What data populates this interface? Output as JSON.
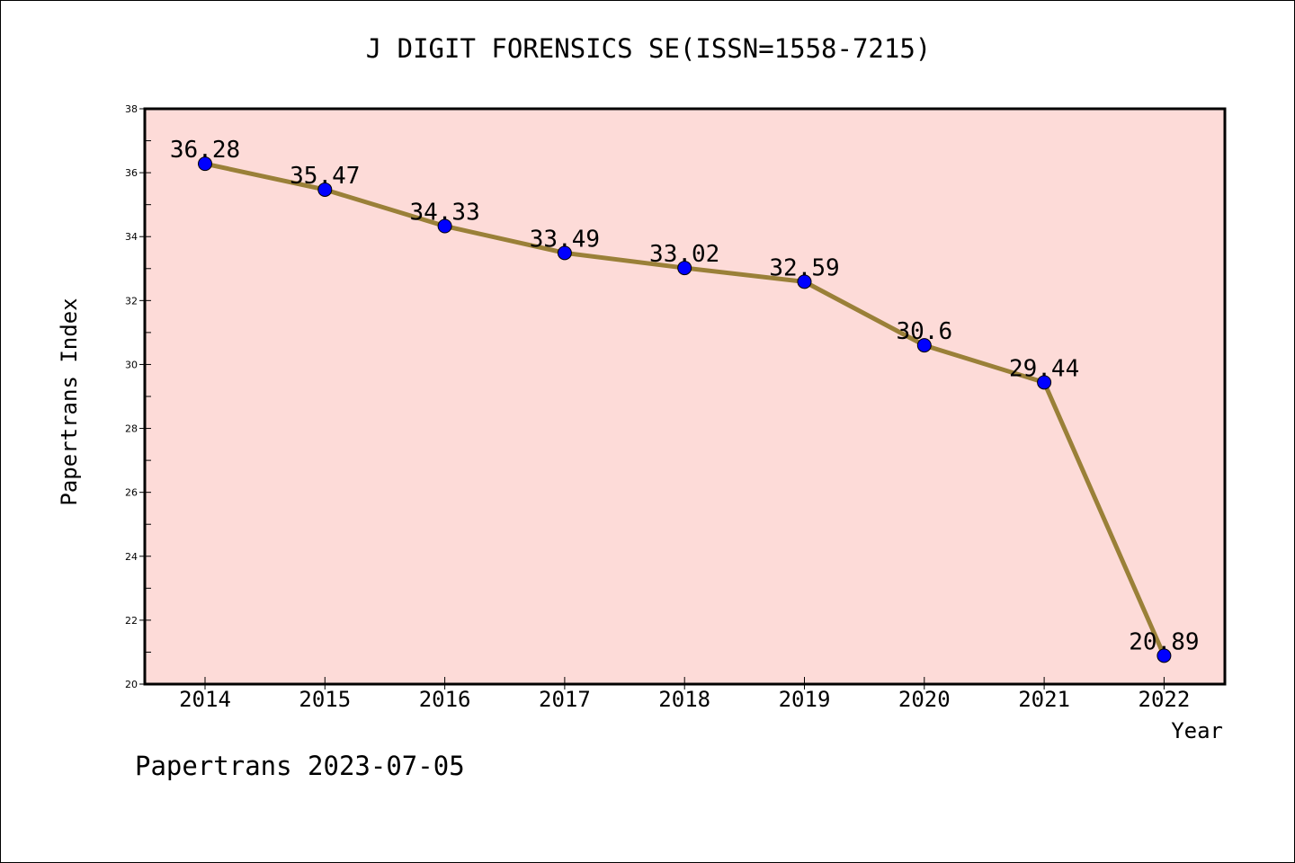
{
  "title": "J DIGIT FORENSICS SE(ISSN=1558-7215)",
  "footer": "Papertrans 2023-07-05",
  "colors": {
    "plot_background": "#fddbd8",
    "line": "#9a8038",
    "marker": "#0000ff",
    "marker_edge": "#000000"
  },
  "chart_data": {
    "type": "line",
    "title": "J DIGIT FORENSICS SE(ISSN=1558-7215)",
    "xlabel": "Year",
    "ylabel": "Papertrans Index",
    "categories": [
      "2014",
      "2015",
      "2016",
      "2017",
      "2018",
      "2019",
      "2020",
      "2021",
      "2022"
    ],
    "values": [
      36.28,
      35.47,
      34.33,
      33.49,
      33.02,
      32.59,
      30.6,
      29.44,
      20.89
    ],
    "data_labels": [
      "36.28",
      "35.47",
      "34.33",
      "33.49",
      "33.02",
      "32.59",
      "30.6",
      "29.44",
      "20.89"
    ],
    "y_ticks": [
      "20",
      "22",
      "24",
      "26",
      "28",
      "30",
      "32",
      "34",
      "36",
      "38"
    ],
    "ylim": [
      20,
      38
    ],
    "grid": false,
    "legend": "none"
  }
}
